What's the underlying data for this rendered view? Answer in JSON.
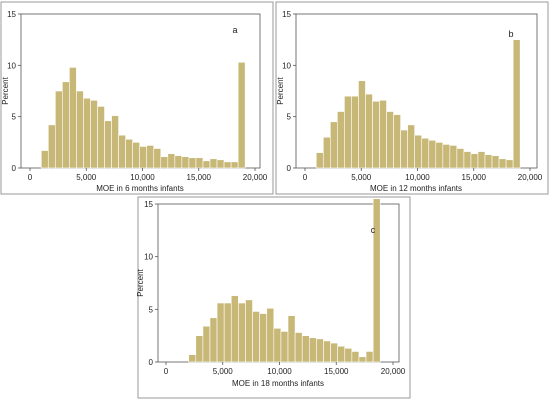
{
  "chart_data": [
    {
      "type": "bar",
      "panel_label": "a",
      "xlabel": "MOE in 6 months infants",
      "ylabel": "Percent",
      "xlim": [
        0,
        20000
      ],
      "ylim": [
        0,
        15
      ],
      "xticks": [
        0,
        5000,
        10000,
        15000,
        20000
      ],
      "xtick_labels": [
        "0",
        "5,000",
        "10,000",
        "15,000",
        "20,000"
      ],
      "yticks": [
        0,
        5,
        10,
        15
      ],
      "ytick_labels": [
        "0",
        "5",
        "10",
        "15"
      ],
      "bin_start": 1000,
      "bin_width": 625,
      "values": [
        1.7,
        4.2,
        7.5,
        8.4,
        9.8,
        7.5,
        6.8,
        6.6,
        6.0,
        4.6,
        5.1,
        3.2,
        2.8,
        2.5,
        2.1,
        2.2,
        1.9,
        1.1,
        1.4,
        1.2,
        1.1,
        1.0,
        1.0,
        0.7,
        0.9,
        0.8,
        0.6,
        0.6,
        10.3
      ],
      "bar_color": "#c8b878",
      "bar_edge": "#ffffff"
    },
    {
      "type": "bar",
      "panel_label": "b",
      "xlabel": "MOE in 12 months infants",
      "ylabel": "Percent",
      "xlim": [
        0,
        20000
      ],
      "ylim": [
        0,
        15
      ],
      "xticks": [
        0,
        5000,
        10000,
        15000,
        20000
      ],
      "xtick_labels": [
        "0",
        "5,000",
        "10,000",
        "15,000",
        "20,000"
      ],
      "yticks": [
        0,
        5,
        10,
        15
      ],
      "ytick_labels": [
        "0",
        "5",
        "10",
        "15"
      ],
      "bin_start": 1000,
      "bin_width": 625,
      "values": [
        1.5,
        3.0,
        4.5,
        5.5,
        7.0,
        7.0,
        8.5,
        7.2,
        6.5,
        6.6,
        5.5,
        5.2,
        3.7,
        4.2,
        3.2,
        2.9,
        2.7,
        2.5,
        2.3,
        2.2,
        1.9,
        1.6,
        1.4,
        1.6,
        1.3,
        1.2,
        0.9,
        0.8,
        12.5
      ],
      "bar_color": "#c8b878",
      "bar_edge": "#ffffff"
    },
    {
      "type": "bar",
      "panel_label": "c",
      "xlabel": "MOE in 18 months infants",
      "ylabel": "Percent",
      "xlim": [
        0,
        20000
      ],
      "ylim": [
        0,
        15
      ],
      "xticks": [
        0,
        5000,
        10000,
        15000,
        20000
      ],
      "xtick_labels": [
        "0",
        "5,000",
        "10,000",
        "15,000",
        "20,000"
      ],
      "yticks": [
        0,
        5,
        10,
        15
      ],
      "ytick_labels": [
        "0",
        "5",
        "10",
        "15"
      ],
      "bin_start": 2000,
      "bin_width": 625,
      "values": [
        0.7,
        2.5,
        3.4,
        4.2,
        5.6,
        5.6,
        6.3,
        5.6,
        5.9,
        4.8,
        4.6,
        5.1,
        3.2,
        2.9,
        4.4,
        2.8,
        2.5,
        2.3,
        2.2,
        2.0,
        1.8,
        1.5,
        1.3,
        1.0,
        0.5,
        1.0,
        15.5
      ],
      "bar_color": "#c8b878",
      "bar_edge": "#ffffff"
    }
  ]
}
